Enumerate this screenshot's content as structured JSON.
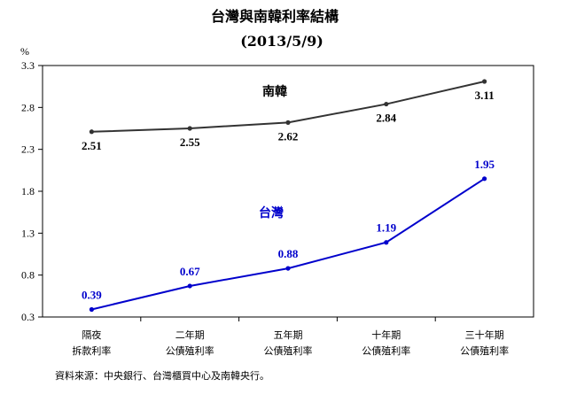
{
  "chart_data": {
    "type": "line",
    "title": "台灣與南韓利率結構",
    "subtitle": "(2013/5/9)",
    "ylabel": "%",
    "ylim": [
      0.3,
      3.3
    ],
    "yticks": [
      "3.3",
      "2.8",
      "2.3",
      "1.8",
      "1.3",
      "0.8",
      "0.3"
    ],
    "categories": [
      [
        "隔夜",
        "拆款利率"
      ],
      [
        "二年期",
        "公債殖利率"
      ],
      [
        "五年期",
        "公債殖利率"
      ],
      [
        "十年期",
        "公債殖利率"
      ],
      [
        "三十年期",
        "公債殖利率"
      ]
    ],
    "series": [
      {
        "name": "南韓",
        "values": [
          2.51,
          2.55,
          2.62,
          2.84,
          3.11
        ],
        "labels": [
          "2.51",
          "2.55",
          "2.62",
          "2.84",
          "3.11"
        ],
        "color": "#333333"
      },
      {
        "name": "台灣",
        "values": [
          0.39,
          0.67,
          0.88,
          1.19,
          1.95
        ],
        "labels": [
          "0.39",
          "0.67",
          "0.88",
          "1.19",
          "1.95"
        ],
        "color": "#0000cc"
      }
    ],
    "grid": false,
    "legend": "inline series labels",
    "source": "資料來源：中央銀行、台灣櫃買中心及南韓央行。"
  }
}
